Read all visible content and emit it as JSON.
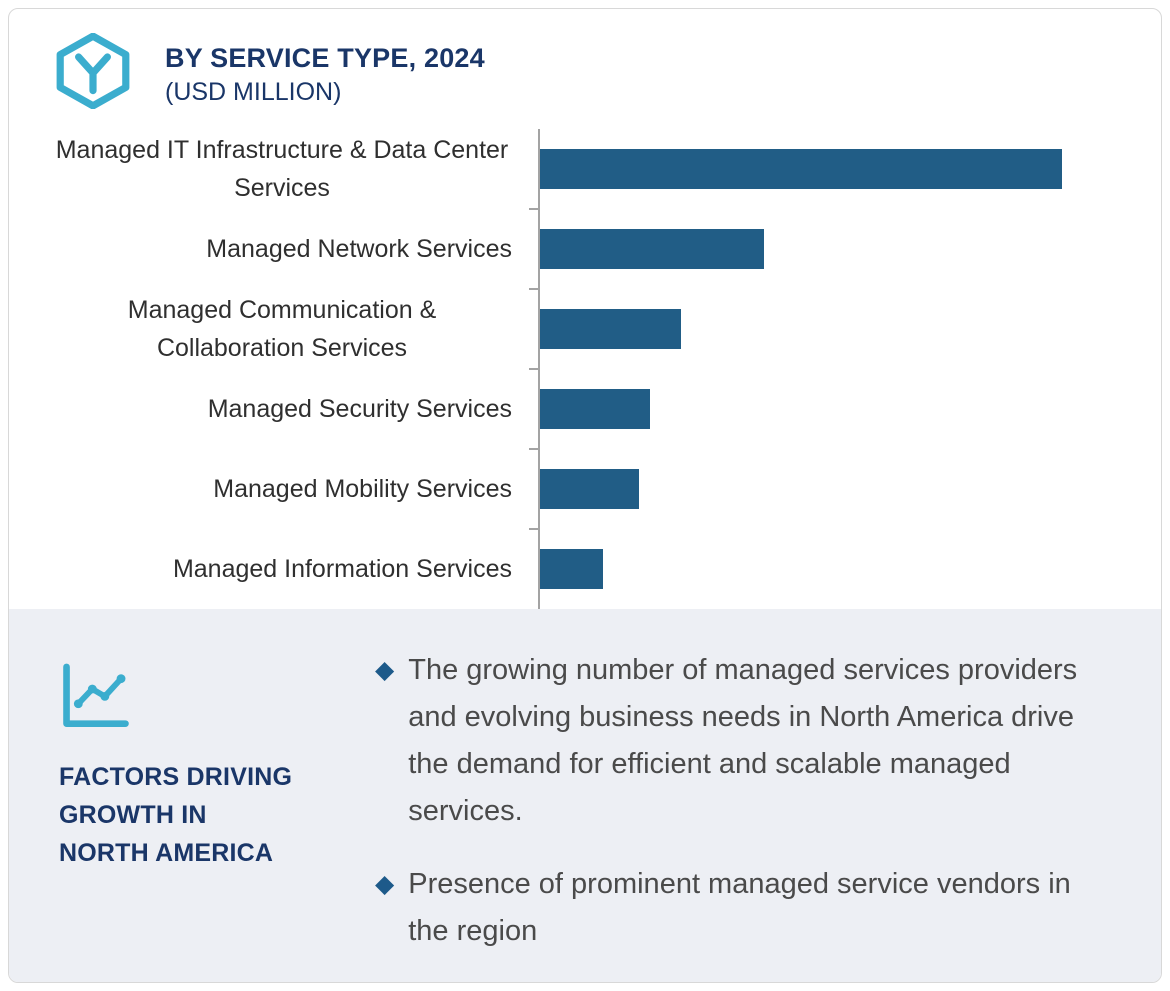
{
  "header": {
    "title": "BY SERVICE TYPE, 2024",
    "subtitle": "(USD MILLION)"
  },
  "chart_data": {
    "type": "bar",
    "orientation": "horizontal",
    "title": "BY SERVICE TYPE, 2024 (USD MILLION)",
    "categories": [
      "Managed IT Infrastructure & Data Center Services",
      "Managed Network Services",
      "Managed Communication & Collaboration Services",
      "Managed Security Services",
      "Managed Mobility Services",
      "Managed Information Services"
    ],
    "values": [
      100,
      43,
      27,
      21,
      19,
      12
    ],
    "value_scale": "relative bar length, no numeric axis labels shown",
    "xlabel": "",
    "ylabel": "",
    "grid": false,
    "legend": false,
    "bar_color": "#215d86",
    "axis_color": "#a3a3a3"
  },
  "factors": {
    "heading": "FACTORS DRIVING GROWTH IN NORTH AMERICA",
    "heading_lines": [
      "FACTORS DRIVING",
      "GROWTH IN",
      "NORTH AMERICA"
    ],
    "bullets": [
      "The growing number of managed services providers and evolving business needs in North America drive the demand for efficient and scalable managed services.",
      "Presence of prominent managed service vendors in the region"
    ]
  },
  "colors": {
    "accent_teal": "#3badce",
    "navy": "#1a3668",
    "bar": "#215d86",
    "panel_background": "#edeff4",
    "bullet_marker": "#1d5a8a"
  },
  "icons": {
    "header_icon": "hexagon-y-icon",
    "factors_icon": "line-chart-icon",
    "bullet_icon": "diamond-bullet-icon"
  }
}
